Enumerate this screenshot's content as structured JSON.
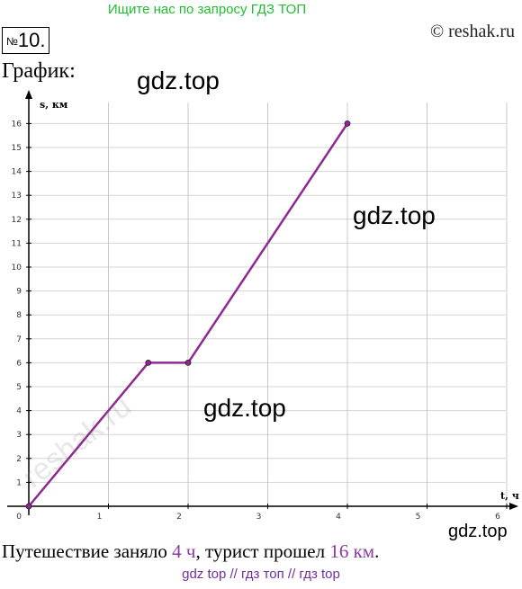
{
  "banner": "Ищите нас по запросу ГДЗ ТОП",
  "copyright": "© reshak.ru",
  "task": {
    "prefix": "№",
    "number": "10."
  },
  "heading": "График:",
  "watermarks": [
    "gdz.top",
    "gdz.top",
    "gdz.top",
    "gdz.top"
  ],
  "side_watermark": "reshak.ru",
  "answer": {
    "text1": "Путешествие заняло ",
    "time": "4 ч",
    "text2": ", турист прошел ",
    "distance": "16 км",
    "text3": "."
  },
  "footer": "gdz top  //  гдз топ  //  гдз top",
  "colors": {
    "line": "#8e2a8e",
    "banner": "#22bb33",
    "highlight": "#8a3a9e"
  },
  "chart_data": {
    "type": "line",
    "xlabel": "t, ч",
    "ylabel": "s, км",
    "xlim": [
      0,
      6
    ],
    "ylim": [
      0,
      16
    ],
    "x_ticks": [
      1,
      2,
      3,
      4,
      5,
      6
    ],
    "y_ticks": [
      1,
      2,
      3,
      4,
      5,
      6,
      7,
      8,
      9,
      10,
      11,
      12,
      13,
      14,
      15,
      16
    ],
    "x_tick_labels": [
      "1",
      "2",
      "3",
      "4",
      "5",
      "6"
    ],
    "y_tick_labels": [
      "1",
      "2",
      "3",
      "4",
      "5",
      "6",
      "7",
      "8",
      "9",
      "10",
      "11",
      "12",
      "13",
      "14",
      "15",
      "16"
    ],
    "origin_label": "0",
    "grid": true,
    "series": [
      {
        "x": [
          0,
          1.5,
          2,
          4
        ],
        "y": [
          0,
          6,
          6,
          16
        ]
      }
    ]
  }
}
